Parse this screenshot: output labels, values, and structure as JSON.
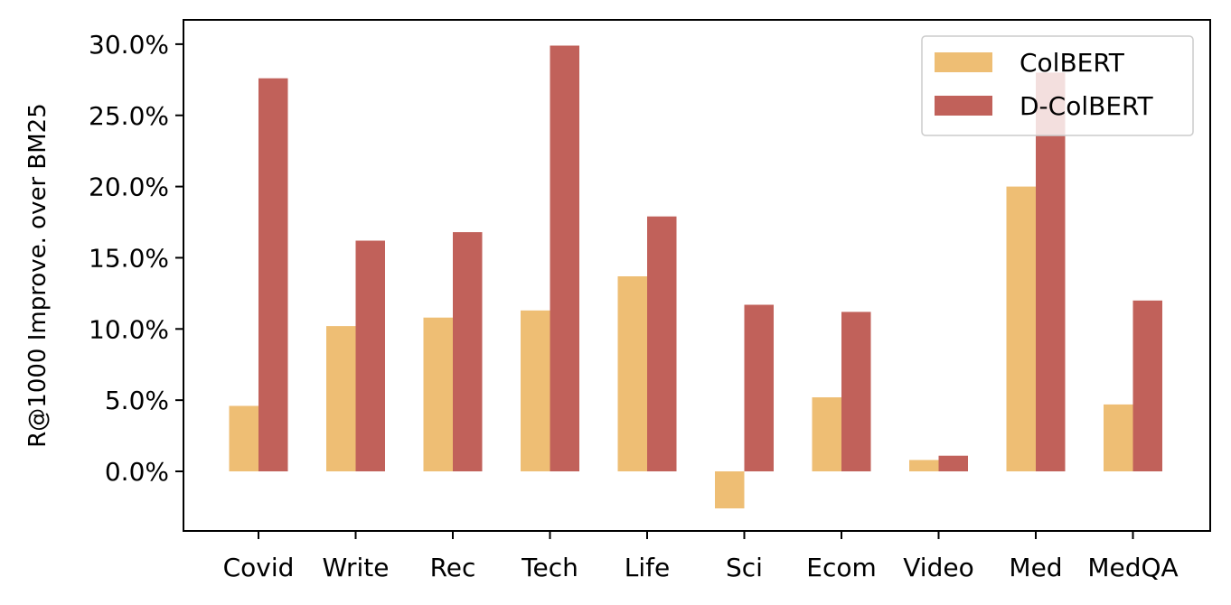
{
  "chart_data": {
    "type": "bar",
    "title": "",
    "xlabel": "",
    "ylabel": "R@1000 Improve. over BM25",
    "categories": [
      "Covid",
      "Write",
      "Rec",
      "Tech",
      "Life",
      "Sci",
      "Ecom",
      "Video",
      "Med",
      "MedQA"
    ],
    "series": [
      {
        "name": "ColBERT",
        "color": "#EEBE74",
        "values": [
          4.6,
          10.2,
          10.8,
          11.3,
          13.7,
          -2.6,
          5.2,
          0.8,
          20.0,
          4.7
        ]
      },
      {
        "name": "D-ColBERT",
        "color": "#C1615A",
        "values": [
          27.6,
          16.2,
          16.8,
          29.9,
          17.9,
          11.7,
          11.2,
          1.1,
          28.0,
          12.0
        ]
      }
    ],
    "yticks": [
      0,
      5,
      10,
      15,
      20,
      25,
      30
    ],
    "ytick_labels": [
      "0.0%",
      "5.0%",
      "10.0%",
      "15.0%",
      "20.0%",
      "25.0%",
      "30.0%"
    ],
    "ylim": [
      -4.2,
      31.7
    ],
    "grid": false,
    "legend_position": "top-right"
  }
}
